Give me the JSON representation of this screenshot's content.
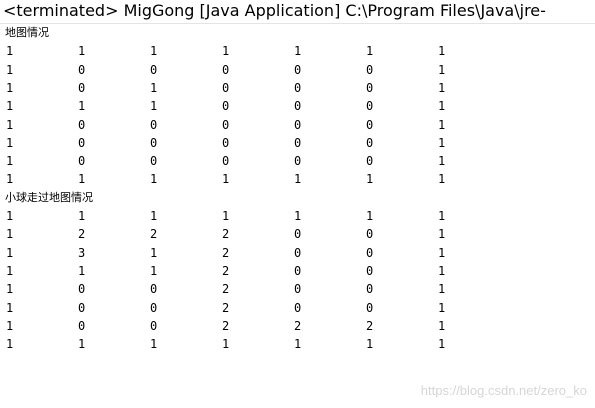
{
  "header": {
    "title": "<terminated> MigGong [Java Application] C:\\Program Files\\Java\\jre-"
  },
  "sections": [
    {
      "label": "地图情况",
      "rows": [
        [
          1,
          1,
          1,
          1,
          1,
          1,
          1
        ],
        [
          1,
          0,
          0,
          0,
          0,
          0,
          1
        ],
        [
          1,
          0,
          1,
          0,
          0,
          0,
          1
        ],
        [
          1,
          1,
          1,
          0,
          0,
          0,
          1
        ],
        [
          1,
          0,
          0,
          0,
          0,
          0,
          1
        ],
        [
          1,
          0,
          0,
          0,
          0,
          0,
          1
        ],
        [
          1,
          0,
          0,
          0,
          0,
          0,
          1
        ],
        [
          1,
          1,
          1,
          1,
          1,
          1,
          1
        ]
      ]
    },
    {
      "label": "小球走过地图情况",
      "rows": [
        [
          1,
          1,
          1,
          1,
          1,
          1,
          1
        ],
        [
          1,
          2,
          2,
          2,
          0,
          0,
          1
        ],
        [
          1,
          3,
          1,
          2,
          0,
          0,
          1
        ],
        [
          1,
          1,
          1,
          2,
          0,
          0,
          1
        ],
        [
          1,
          0,
          0,
          2,
          0,
          0,
          1
        ],
        [
          1,
          0,
          0,
          2,
          0,
          0,
          1
        ],
        [
          1,
          0,
          0,
          2,
          2,
          2,
          1
        ],
        [
          1,
          1,
          1,
          1,
          1,
          1,
          1
        ]
      ]
    }
  ],
  "watermark": "https://blog.csdn.net/zero_ko"
}
